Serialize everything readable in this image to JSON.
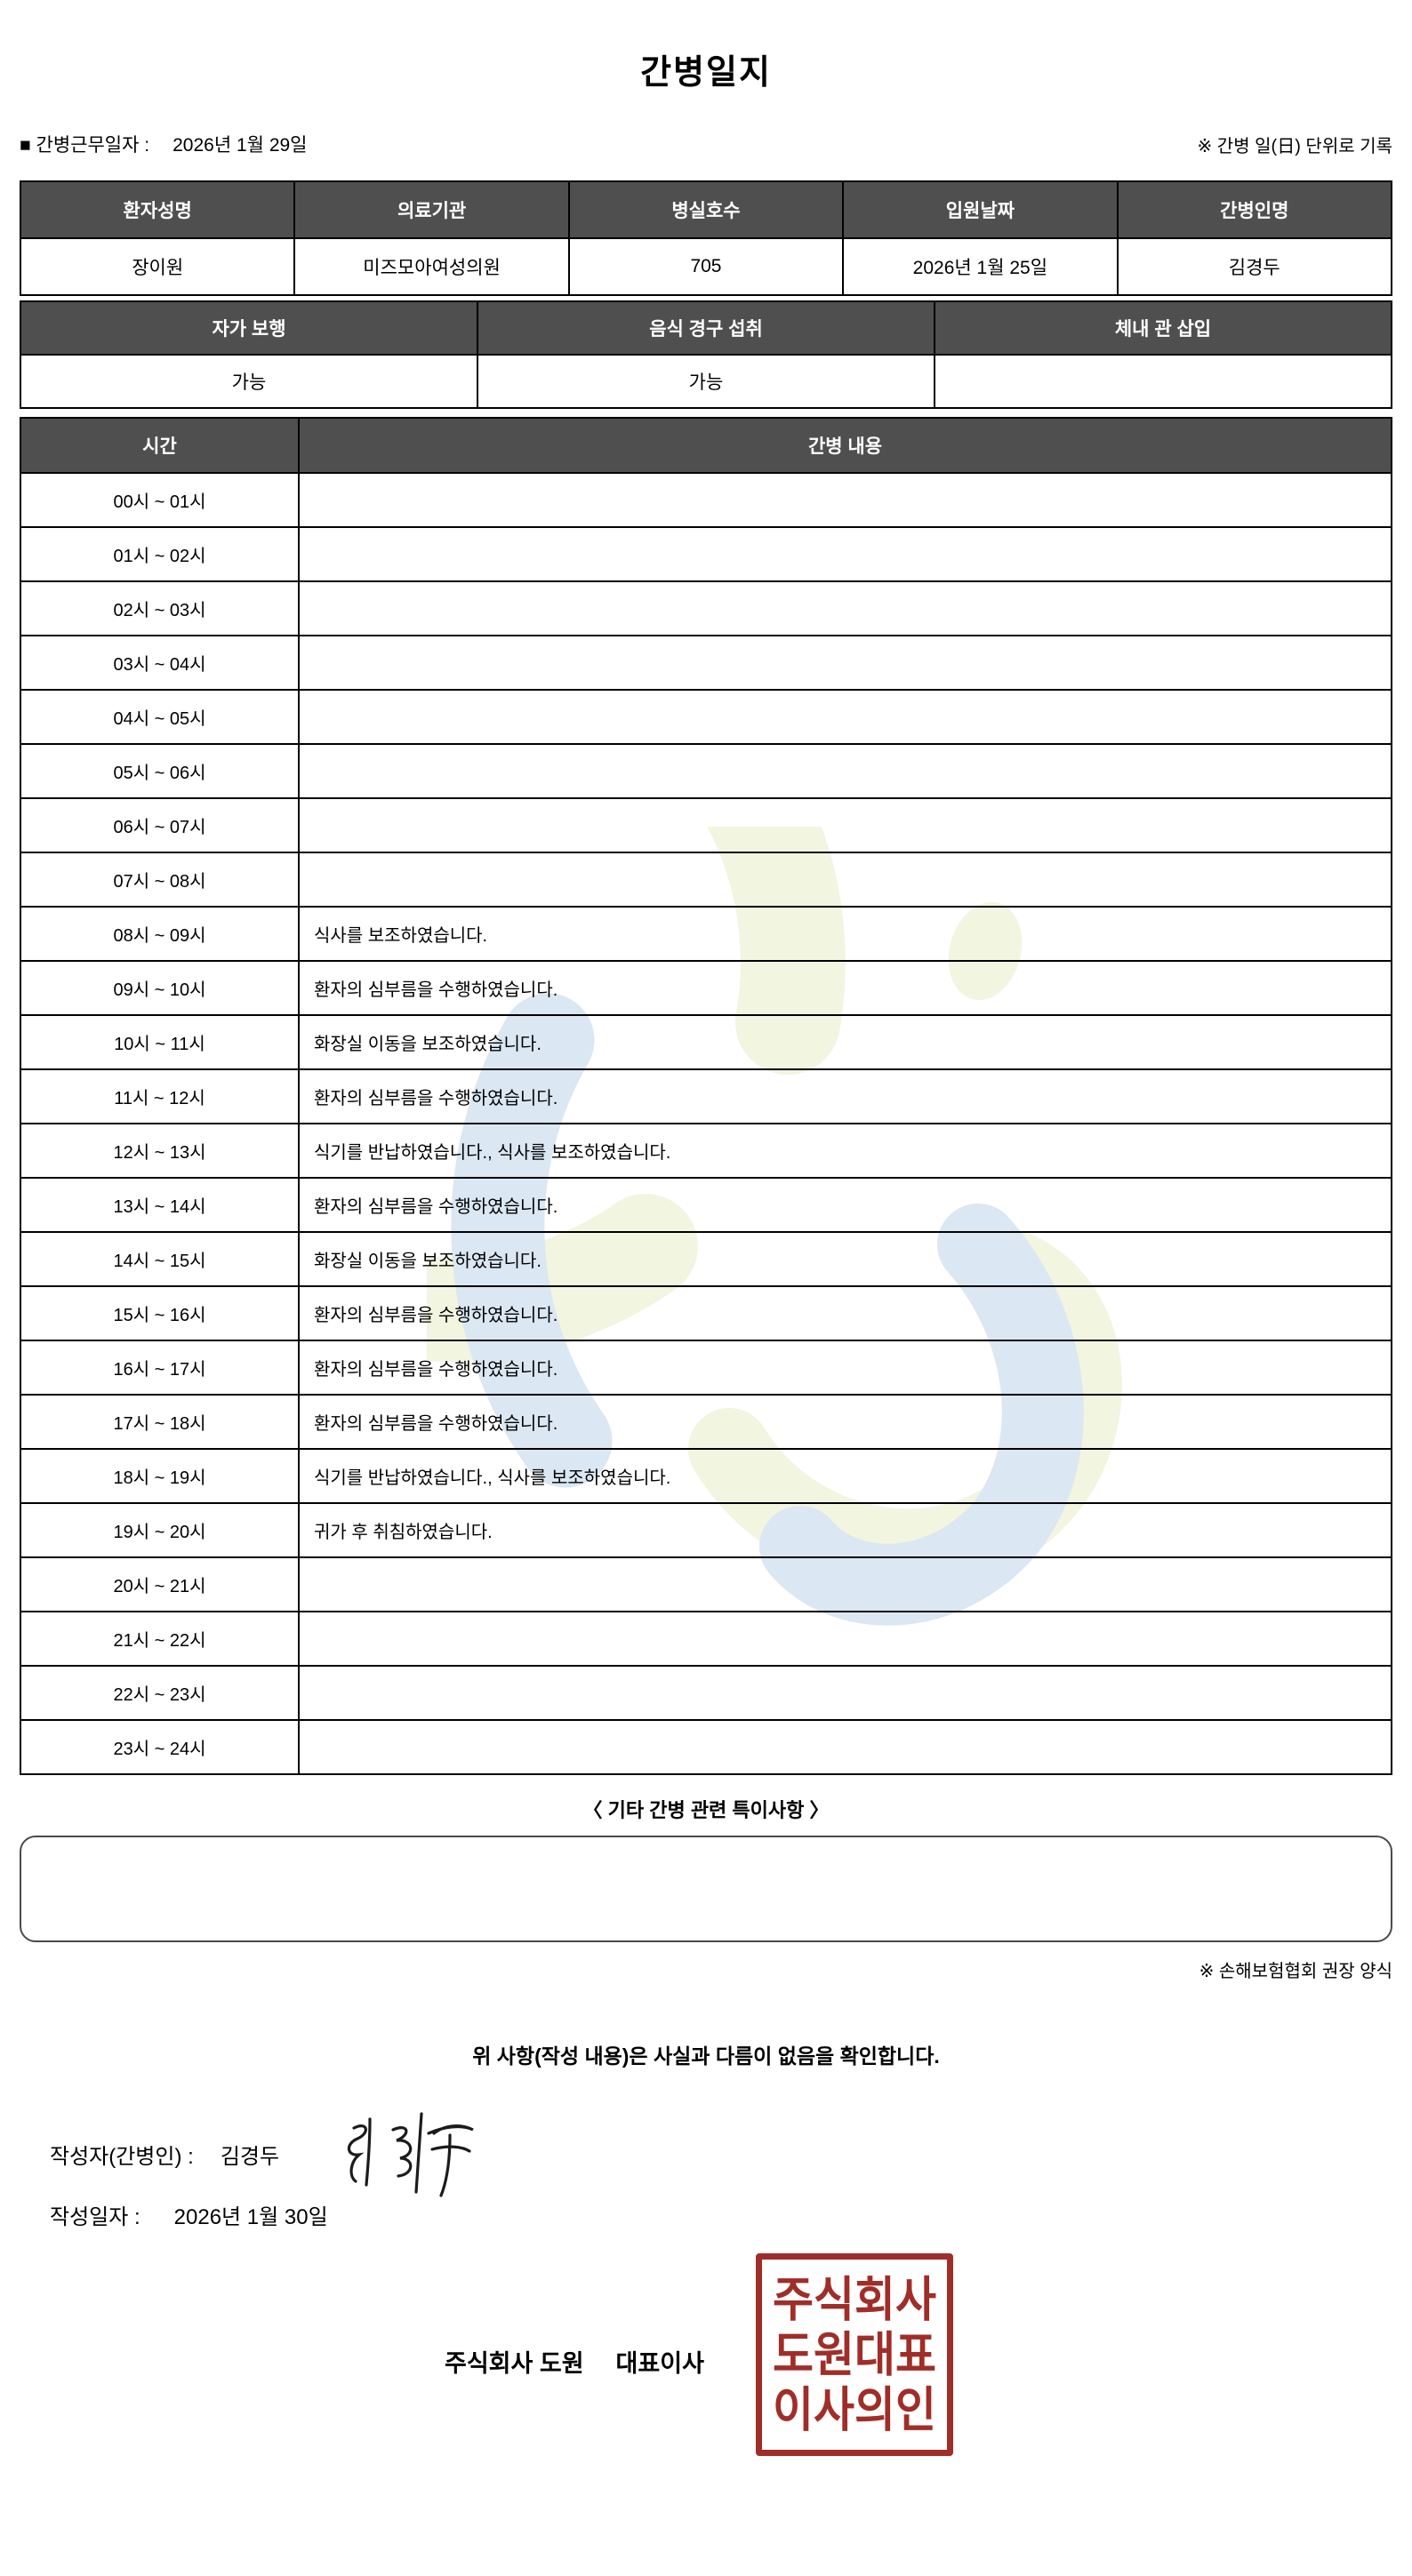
{
  "title": "간병일지",
  "meta": {
    "work_date_label": "■ 간병근무일자  :",
    "work_date_value": "2026년 1월 29일",
    "unit_note": "※ 간병 일(日) 단위로 기록"
  },
  "patient_table": {
    "headers": [
      "환자성명",
      "의료기관",
      "병실호수",
      "입원날짜",
      "간병인명"
    ],
    "values": [
      "장이원",
      "미즈모아여성의원",
      "705",
      "2026년 1월 25일",
      "김경두"
    ]
  },
  "status_table": {
    "headers": [
      "자가 보행",
      "음식 경구 섭취",
      "체내 관 삽입"
    ],
    "values": [
      "가능",
      "가능",
      ""
    ]
  },
  "log_table": {
    "time_header": "시간",
    "content_header": "간병 내용",
    "rows": [
      {
        "time": "00시 ~ 01시",
        "content": ""
      },
      {
        "time": "01시 ~ 02시",
        "content": ""
      },
      {
        "time": "02시 ~ 03시",
        "content": ""
      },
      {
        "time": "03시 ~ 04시",
        "content": ""
      },
      {
        "time": "04시 ~ 05시",
        "content": ""
      },
      {
        "time": "05시 ~ 06시",
        "content": ""
      },
      {
        "time": "06시 ~ 07시",
        "content": ""
      },
      {
        "time": "07시 ~ 08시",
        "content": ""
      },
      {
        "time": "08시 ~ 09시",
        "content": "식사를 보조하였습니다."
      },
      {
        "time": "09시 ~ 10시",
        "content": "환자의 심부름을 수행하였습니다."
      },
      {
        "time": "10시 ~ 11시",
        "content": "화장실 이동을 보조하였습니다."
      },
      {
        "time": "11시 ~ 12시",
        "content": "환자의 심부름을 수행하였습니다."
      },
      {
        "time": "12시 ~ 13시",
        "content": "식기를 반납하였습니다., 식사를 보조하였습니다."
      },
      {
        "time": "13시 ~ 14시",
        "content": "환자의 심부름을 수행하였습니다."
      },
      {
        "time": "14시 ~ 15시",
        "content": "화장실 이동을 보조하였습니다."
      },
      {
        "time": "15시 ~ 16시",
        "content": "환자의 심부름을 수행하였습니다."
      },
      {
        "time": "16시 ~ 17시",
        "content": "환자의 심부름을 수행하였습니다."
      },
      {
        "time": "17시 ~ 18시",
        "content": "환자의 심부름을 수행하였습니다."
      },
      {
        "time": "18시 ~ 19시",
        "content": "식기를 반납하였습니다., 식사를 보조하였습니다."
      },
      {
        "time": "19시 ~ 20시",
        "content": "귀가 후 취침하였습니다."
      },
      {
        "time": "20시 ~ 21시",
        "content": ""
      },
      {
        "time": "21시 ~ 22시",
        "content": ""
      },
      {
        "time": "22시 ~ 23시",
        "content": ""
      },
      {
        "time": "23시 ~ 24시",
        "content": ""
      }
    ]
  },
  "notes": {
    "title": "〈 기타 간병 관련 특이사항 〉",
    "content": "",
    "form_note": "※ 손해보험협회 권장 양식"
  },
  "footer": {
    "confirmation": "위 사항(작성 내용)은 사실과 다름이 없음을 확인합니다.",
    "writer_label": "작성자(간병인) :",
    "writer_name": "김경두",
    "write_date_label": "작성일자 :",
    "write_date_value": "2026년 1월 30일",
    "company_name": "주식회사 도원",
    "ceo_title": "대표이사",
    "stamp_lines": [
      "주식회사",
      "도원대표",
      "이사의인"
    ]
  },
  "colors": {
    "table_header_bg": "#4f4f4f",
    "table_header_text": "#ffffff",
    "stamp_red": "#a02e28",
    "watermark_olive": "#f2f5e0",
    "watermark_blue": "#dbe7f3"
  }
}
